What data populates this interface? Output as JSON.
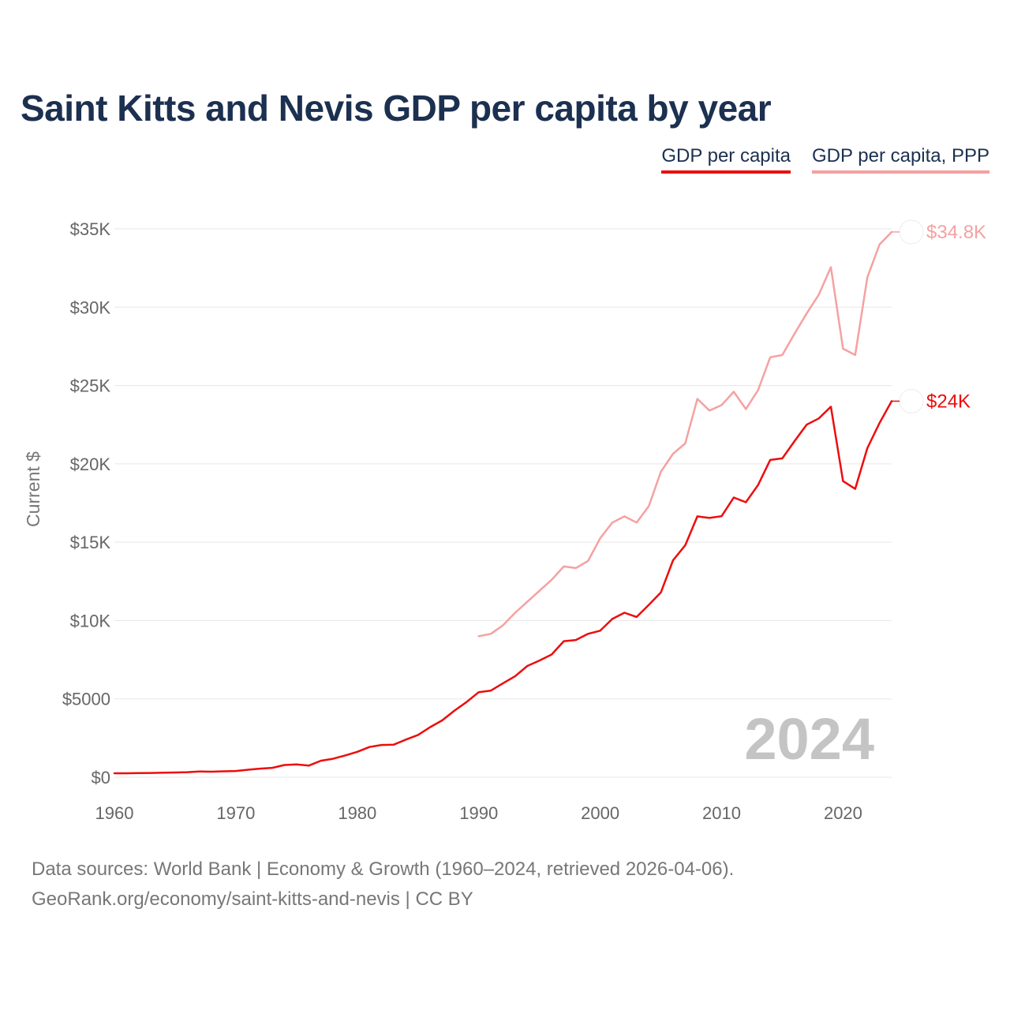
{
  "chart_data": {
    "type": "line",
    "title": "Saint Kitts and Nevis GDP per capita by year",
    "ylabel": "Current $",
    "xlabel": "",
    "xlim": [
      1960,
      2024
    ],
    "ylim": [
      0,
      35000
    ],
    "grid": true,
    "legend_position": "top-right",
    "year_watermark": "2024",
    "x_ticks": [
      1960,
      1970,
      1980,
      1990,
      2000,
      2010,
      2020
    ],
    "x_tick_labels": [
      "1960",
      "1970",
      "1980",
      "1990",
      "2000",
      "2010",
      "2020"
    ],
    "y_ticks": [
      0,
      5000,
      10000,
      15000,
      20000,
      25000,
      30000,
      35000
    ],
    "y_tick_labels": [
      "$0",
      "$5000",
      "$10K",
      "$15K",
      "$20K",
      "$25K",
      "$30K",
      "$35K"
    ],
    "series": [
      {
        "name": "GDP per capita",
        "color": "#ee0c0c",
        "end_label": "$24K",
        "x": [
          1960,
          1961,
          1962,
          1963,
          1964,
          1965,
          1966,
          1967,
          1968,
          1969,
          1970,
          1971,
          1972,
          1973,
          1974,
          1975,
          1976,
          1977,
          1978,
          1979,
          1980,
          1981,
          1982,
          1983,
          1984,
          1985,
          1986,
          1987,
          1988,
          1989,
          1990,
          1991,
          1992,
          1993,
          1994,
          1995,
          1996,
          1997,
          1998,
          1999,
          2000,
          2001,
          2002,
          2003,
          2004,
          2005,
          2006,
          2007,
          2008,
          2009,
          2010,
          2011,
          2012,
          2013,
          2014,
          2015,
          2016,
          2017,
          2018,
          2019,
          2020,
          2021,
          2022,
          2023,
          2024
        ],
        "values": [
          250,
          250,
          260,
          270,
          290,
          300,
          320,
          370,
          350,
          380,
          400,
          480,
          550,
          600,
          780,
          820,
          740,
          1050,
          1180,
          1390,
          1620,
          1930,
          2060,
          2080,
          2400,
          2700,
          3200,
          3630,
          4250,
          4800,
          5430,
          5530,
          6000,
          6450,
          7100,
          7450,
          7830,
          8680,
          8760,
          9150,
          9350,
          10100,
          10500,
          10230,
          11000,
          11800,
          13850,
          14800,
          16650,
          16550,
          16660,
          17850,
          17550,
          18650,
          20250,
          20350,
          21450,
          22500,
          22900,
          23650,
          18900,
          18400,
          21000,
          22600,
          24000
        ]
      },
      {
        "name": "GDP per capita, PPP",
        "color": "#f5a1a1",
        "end_label": "$34.8K",
        "x": [
          1990,
          1991,
          1992,
          1993,
          1994,
          1995,
          1996,
          1997,
          1998,
          1999,
          2000,
          2001,
          2002,
          2003,
          2004,
          2005,
          2006,
          2007,
          2008,
          2009,
          2010,
          2011,
          2012,
          2013,
          2014,
          2015,
          2016,
          2017,
          2018,
          2019,
          2020,
          2021,
          2022,
          2023,
          2024
        ],
        "values": [
          9000,
          9150,
          9700,
          10500,
          11200,
          11900,
          12600,
          13450,
          13350,
          13800,
          15250,
          16250,
          16650,
          16250,
          17300,
          19500,
          20650,
          21300,
          24150,
          23400,
          23750,
          24600,
          23500,
          24700,
          26800,
          26950,
          28300,
          29600,
          30800,
          32550,
          27350,
          26950,
          31900,
          34000,
          34800
        ]
      }
    ]
  },
  "legend": {
    "gdp": "GDP per capita",
    "ppp": "GDP per capita, PPP"
  },
  "footer": {
    "source": "Data sources: World Bank | Economy & Growth (1960–2024, retrieved 2026-04-06).",
    "credit": "GeoRank.org/economy/saint-kitts-and-nevis | CC BY"
  },
  "colors": {
    "title": "#1c3050",
    "grid": "#e6e6e6",
    "tick": "#666666",
    "watermark": "#c4c4c4"
  },
  "icons": {
    "end_marker": "saint-kitts-and-nevis-flag-icon"
  }
}
